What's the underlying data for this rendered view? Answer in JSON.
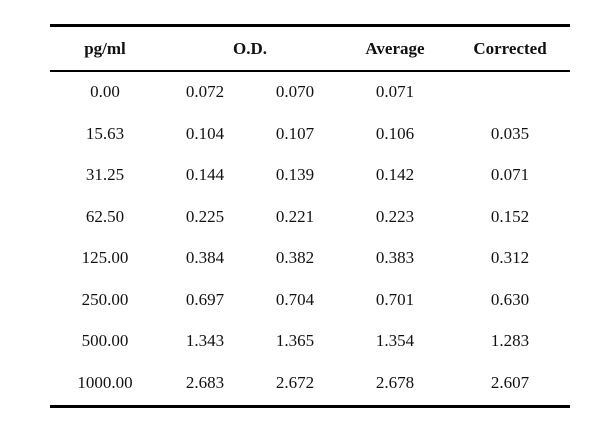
{
  "table": {
    "headers": {
      "concentration": "pg/ml",
      "od": "O.D.",
      "average": "Average",
      "corrected": "Corrected"
    },
    "rows": [
      {
        "conc": "0.00",
        "od1": "0.072",
        "od2": "0.070",
        "avg": "0.071",
        "corrected": ""
      },
      {
        "conc": "15.63",
        "od1": "0.104",
        "od2": "0.107",
        "avg": "0.106",
        "corrected": "0.035"
      },
      {
        "conc": "31.25",
        "od1": "0.144",
        "od2": "0.139",
        "avg": "0.142",
        "corrected": "0.071"
      },
      {
        "conc": "62.50",
        "od1": "0.225",
        "od2": "0.221",
        "avg": "0.223",
        "corrected": "0.152"
      },
      {
        "conc": "125.00",
        "od1": "0.384",
        "od2": "0.382",
        "avg": "0.383",
        "corrected": "0.312"
      },
      {
        "conc": "250.00",
        "od1": "0.697",
        "od2": "0.704",
        "avg": "0.701",
        "corrected": "0.630"
      },
      {
        "conc": "500.00",
        "od1": "1.343",
        "od2": "1.365",
        "avg": "1.354",
        "corrected": "1.283"
      },
      {
        "conc": "1000.00",
        "od1": "2.683",
        "od2": "2.672",
        "avg": "2.678",
        "corrected": "2.607"
      }
    ]
  }
}
